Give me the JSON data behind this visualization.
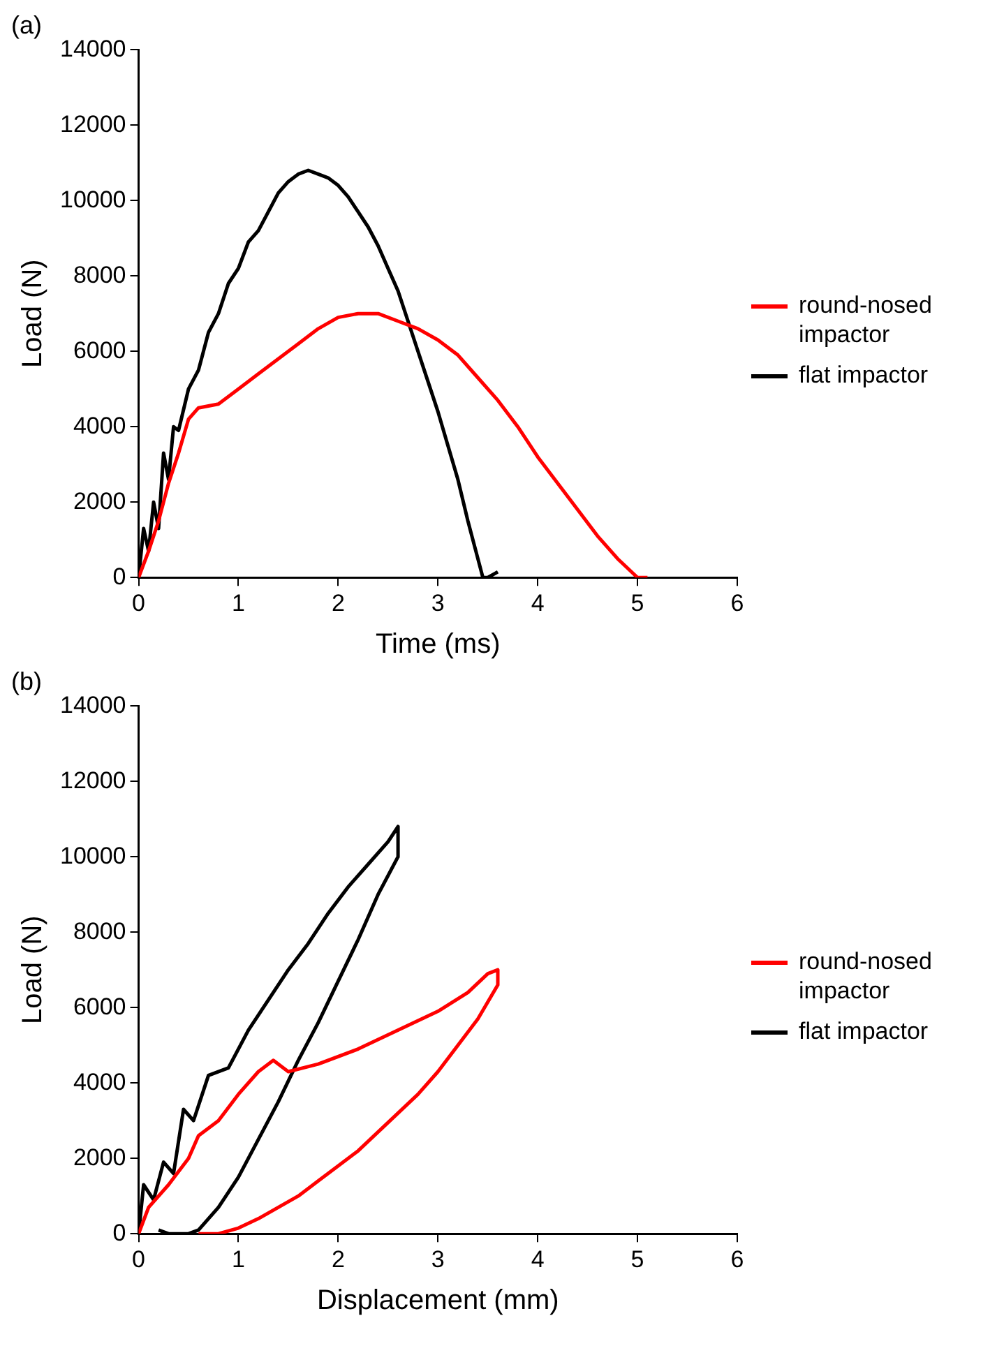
{
  "chart_data": [
    {
      "type": "line",
      "title": "(a)",
      "xlabel": "Time (ms)",
      "ylabel": "Load (N)",
      "xlim": [
        0,
        6
      ],
      "xticks": [
        0,
        1,
        2,
        3,
        4,
        5,
        6
      ],
      "ylim": [
        0,
        14000
      ],
      "yticks": [
        0,
        2000,
        4000,
        6000,
        8000,
        10000,
        12000,
        14000
      ],
      "grid": false,
      "legend": "right",
      "marker": "none",
      "series": [
        {
          "name": "round-nosed impactor",
          "color": "#ff0000",
          "x": [
            0,
            0.1,
            0.2,
            0.3,
            0.4,
            0.5,
            0.6,
            0.8,
            1.0,
            1.2,
            1.4,
            1.6,
            1.8,
            2.0,
            2.2,
            2.4,
            2.6,
            2.8,
            3.0,
            3.2,
            3.4,
            3.6,
            3.8,
            4.0,
            4.2,
            4.4,
            4.6,
            4.8,
            5.0,
            5.1
          ],
          "values": [
            0,
            700,
            1500,
            2500,
            3300,
            4200,
            4500,
            4600,
            5000,
            5400,
            5800,
            6200,
            6600,
            6900,
            7000,
            7000,
            6800,
            6600,
            6300,
            5900,
            5300,
            4700,
            4000,
            3200,
            2500,
            1800,
            1100,
            500,
            0,
            0
          ]
        },
        {
          "name": "flat impactor",
          "color": "#000000",
          "x": [
            0,
            0.05,
            0.1,
            0.15,
            0.2,
            0.25,
            0.3,
            0.35,
            0.4,
            0.5,
            0.6,
            0.7,
            0.8,
            0.9,
            1.0,
            1.1,
            1.2,
            1.3,
            1.4,
            1.5,
            1.6,
            1.7,
            1.8,
            1.9,
            2.0,
            2.1,
            2.2,
            2.3,
            2.4,
            2.5,
            2.6,
            2.7,
            2.8,
            2.9,
            3.0,
            3.1,
            3.2,
            3.3,
            3.4,
            3.45,
            3.5,
            3.6
          ],
          "values": [
            0,
            1300,
            700,
            2000,
            1300,
            3300,
            2600,
            4000,
            3900,
            5000,
            5500,
            6500,
            7000,
            7800,
            8200,
            8900,
            9200,
            9700,
            10200,
            10500,
            10700,
            10800,
            10700,
            10600,
            10400,
            10100,
            9700,
            9300,
            8800,
            8200,
            7600,
            6800,
            6000,
            5200,
            4400,
            3500,
            2600,
            1500,
            500,
            0,
            0,
            150
          ]
        }
      ]
    },
    {
      "type": "line",
      "title": "(b)",
      "xlabel": "Displacement (mm)",
      "ylabel": "Load (N)",
      "xlim": [
        0,
        6
      ],
      "xticks": [
        0,
        1,
        2,
        3,
        4,
        5,
        6
      ],
      "ylim": [
        0,
        14000
      ],
      "yticks": [
        0,
        2000,
        4000,
        6000,
        8000,
        10000,
        12000,
        14000
      ],
      "grid": false,
      "legend": "right",
      "marker": "none",
      "series": [
        {
          "name": "round-nosed impactor",
          "color": "#ff0000",
          "x": [
            0,
            0.1,
            0.3,
            0.5,
            0.6,
            0.8,
            1.0,
            1.2,
            1.35,
            1.5,
            1.8,
            2.2,
            2.6,
            3.0,
            3.3,
            3.5,
            3.6,
            3.6,
            3.4,
            3.2,
            3.0,
            2.8,
            2.6,
            2.4,
            2.2,
            2.0,
            1.8,
            1.6,
            1.4,
            1.2,
            1.0,
            0.8,
            0.6
          ],
          "values": [
            0,
            700,
            1300,
            2000,
            2600,
            3000,
            3700,
            4300,
            4600,
            4300,
            4500,
            4900,
            5400,
            5900,
            6400,
            6900,
            7000,
            6600,
            5700,
            5000,
            4300,
            3700,
            3200,
            2700,
            2200,
            1800,
            1400,
            1000,
            700,
            400,
            150,
            0,
            0
          ]
        },
        {
          "name": "flat impactor",
          "color": "#000000",
          "x": [
            0,
            0.05,
            0.15,
            0.25,
            0.35,
            0.45,
            0.55,
            0.7,
            0.9,
            1.1,
            1.3,
            1.5,
            1.7,
            1.9,
            2.1,
            2.3,
            2.5,
            2.6,
            2.6,
            2.4,
            2.2,
            2.0,
            1.8,
            1.6,
            1.4,
            1.2,
            1.0,
            0.8,
            0.6,
            0.5,
            0.3,
            0.2
          ],
          "values": [
            0,
            1300,
            900,
            1900,
            1600,
            3300,
            3000,
            4200,
            4400,
            5400,
            6200,
            7000,
            7700,
            8500,
            9200,
            9800,
            10400,
            10800,
            10000,
            9000,
            7800,
            6700,
            5600,
            4600,
            3500,
            2500,
            1500,
            700,
            100,
            0,
            0,
            100
          ]
        }
      ]
    }
  ]
}
